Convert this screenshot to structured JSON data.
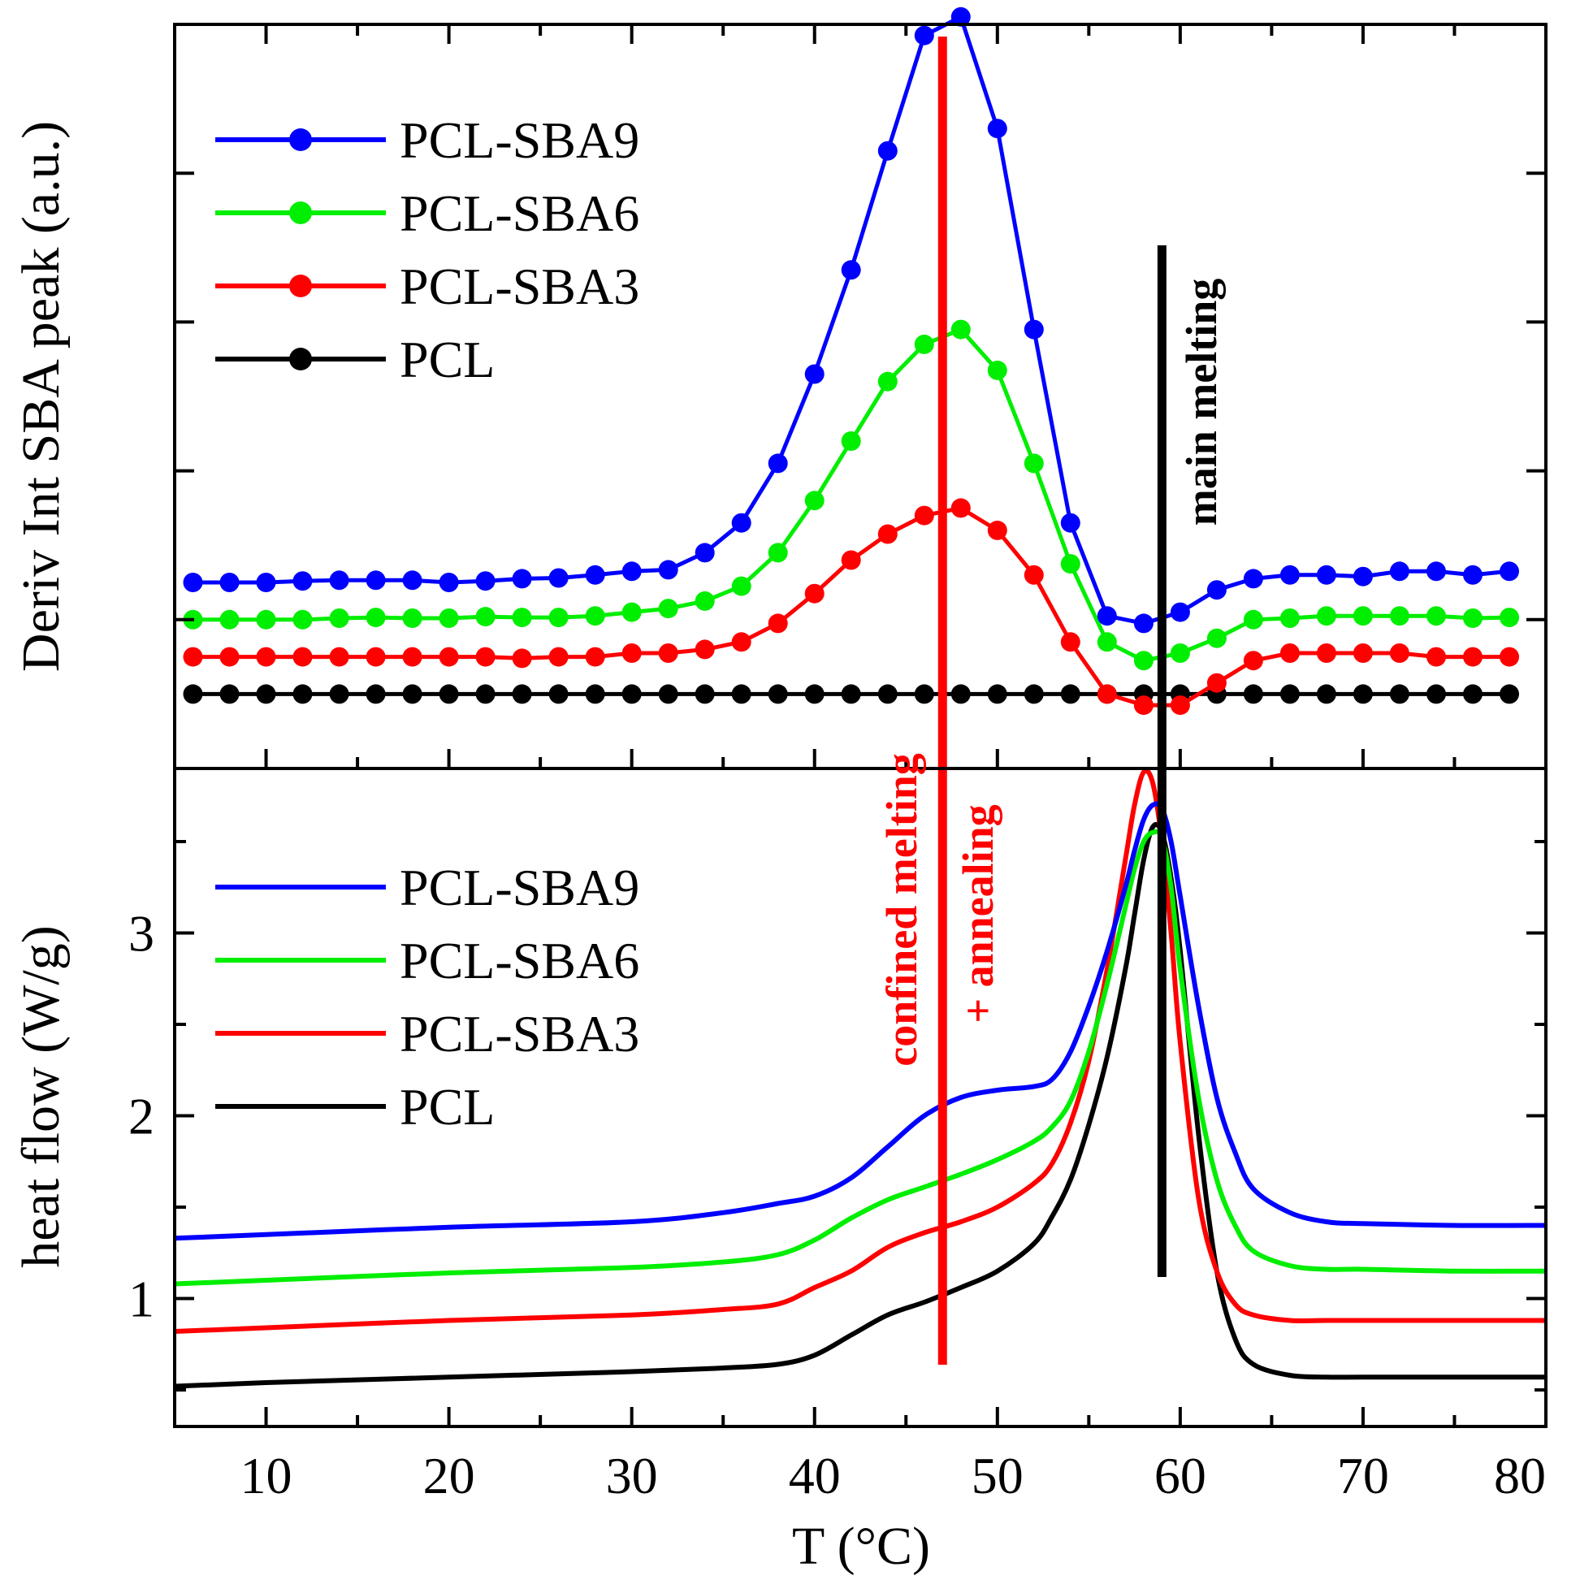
{
  "chart_data": [
    {
      "type": "line",
      "panel": "top",
      "ylabel": "Deriv Int SBA peak (a.u.)",
      "xlabel": "",
      "xlim": [
        5,
        80
      ],
      "ylim": [
        0,
        10
      ],
      "y_tick_labels_shown": false,
      "legend_position": "top-left",
      "markers": true,
      "x": [
        6,
        8,
        10,
        12,
        14,
        16,
        18,
        20,
        22,
        24,
        26,
        28,
        30,
        32,
        34,
        36,
        38,
        40,
        42,
        44,
        46,
        48,
        50,
        52,
        54,
        56,
        58,
        60,
        62,
        64,
        66,
        68,
        70,
        72,
        74,
        76,
        78
      ],
      "series": [
        {
          "name": "PCL-SBA9",
          "color": "#0000ff",
          "values": [
            2.5,
            2.5,
            2.5,
            2.52,
            2.53,
            2.53,
            2.53,
            2.5,
            2.52,
            2.55,
            2.56,
            2.6,
            2.65,
            2.67,
            2.9,
            3.3,
            4.1,
            5.3,
            6.7,
            8.3,
            9.85,
            10.1,
            8.6,
            5.9,
            3.3,
            2.05,
            1.95,
            2.1,
            2.4,
            2.55,
            2.6,
            2.6,
            2.58,
            2.65,
            2.65,
            2.6,
            2.65
          ]
        },
        {
          "name": "PCL-SBA6",
          "color": "#00ee00",
          "values": [
            2.0,
            2.0,
            2.0,
            2.0,
            2.02,
            2.03,
            2.02,
            2.02,
            2.04,
            2.03,
            2.03,
            2.05,
            2.1,
            2.15,
            2.25,
            2.45,
            2.9,
            3.6,
            4.4,
            5.2,
            5.7,
            5.9,
            5.35,
            4.1,
            2.75,
            1.7,
            1.45,
            1.55,
            1.75,
            2.0,
            2.02,
            2.05,
            2.05,
            2.05,
            2.05,
            2.02,
            2.03
          ]
        },
        {
          "name": "PCL-SBA3",
          "color": "#ff0000",
          "values": [
            1.5,
            1.5,
            1.5,
            1.5,
            1.5,
            1.5,
            1.5,
            1.5,
            1.5,
            1.48,
            1.5,
            1.5,
            1.55,
            1.55,
            1.6,
            1.7,
            1.95,
            2.35,
            2.8,
            3.15,
            3.4,
            3.5,
            3.2,
            2.6,
            1.7,
            1.0,
            0.85,
            0.85,
            1.15,
            1.45,
            1.55,
            1.55,
            1.55,
            1.55,
            1.5,
            1.5,
            1.5
          ]
        },
        {
          "name": "PCL",
          "color": "#000000",
          "values": [
            1.0,
            1.0,
            1.0,
            1.0,
            1.0,
            1.0,
            1.0,
            1.0,
            1.0,
            1.0,
            1.0,
            1.0,
            1.0,
            1.0,
            1.0,
            1.0,
            1.0,
            1.0,
            1.0,
            1.0,
            1.0,
            1.0,
            1.0,
            1.0,
            1.0,
            1.0,
            1.0,
            1.0,
            1.0,
            1.0,
            1.0,
            1.0,
            1.0,
            1.0,
            1.0,
            1.0,
            1.0
          ]
        }
      ]
    },
    {
      "type": "line",
      "panel": "bottom",
      "ylabel": "heat flow (W/g)",
      "xlabel": "T (°C)",
      "xlim": [
        5,
        80
      ],
      "ylim": [
        0.3,
        3.9
      ],
      "y_ticks": [
        1,
        2,
        3
      ],
      "x_ticks": [
        10,
        20,
        30,
        40,
        50,
        60,
        70,
        80
      ],
      "legend_position": "center-left",
      "markers": false,
      "x": [
        5,
        10,
        20,
        30,
        35,
        38,
        40,
        42,
        44,
        46,
        48,
        50,
        52,
        53,
        54,
        55,
        56,
        57,
        57.5,
        58,
        58.5,
        59,
        59.5,
        60,
        61,
        62,
        63,
        64,
        66,
        68,
        70,
        75,
        80
      ],
      "series": [
        {
          "name": "PCL-SBA9",
          "color": "#0000ff",
          "values": [
            1.33,
            1.35,
            1.39,
            1.42,
            1.47,
            1.52,
            1.56,
            1.66,
            1.83,
            2.0,
            2.1,
            2.14,
            2.16,
            2.2,
            2.35,
            2.6,
            2.9,
            3.25,
            3.45,
            3.62,
            3.7,
            3.68,
            3.5,
            3.2,
            2.6,
            2.1,
            1.8,
            1.6,
            1.47,
            1.42,
            1.41,
            1.4,
            1.4
          ]
        },
        {
          "name": "PCL-SBA6",
          "color": "#00ee00",
          "values": [
            1.08,
            1.1,
            1.14,
            1.17,
            1.2,
            1.24,
            1.32,
            1.44,
            1.54,
            1.61,
            1.68,
            1.76,
            1.86,
            1.94,
            2.08,
            2.35,
            2.72,
            3.14,
            3.35,
            3.5,
            3.55,
            3.52,
            3.25,
            2.8,
            2.1,
            1.65,
            1.4,
            1.26,
            1.18,
            1.16,
            1.16,
            1.15,
            1.15
          ]
        },
        {
          "name": "PCL-SBA3",
          "color": "#ff0000",
          "values": [
            0.82,
            0.84,
            0.88,
            0.91,
            0.94,
            0.97,
            1.06,
            1.15,
            1.28,
            1.36,
            1.42,
            1.5,
            1.63,
            1.74,
            1.96,
            2.3,
            2.8,
            3.4,
            3.7,
            3.88,
            3.82,
            3.5,
            3.0,
            2.4,
            1.55,
            1.15,
            0.97,
            0.91,
            0.88,
            0.88,
            0.88,
            0.88,
            0.88
          ]
        },
        {
          "name": "PCL",
          "color": "#000000",
          "values": [
            0.52,
            0.54,
            0.57,
            0.6,
            0.62,
            0.64,
            0.69,
            0.8,
            0.91,
            0.98,
            1.06,
            1.15,
            1.3,
            1.45,
            1.65,
            1.95,
            2.32,
            2.8,
            3.1,
            3.4,
            3.58,
            3.55,
            3.3,
            2.9,
            1.9,
            1.15,
            0.78,
            0.64,
            0.58,
            0.57,
            0.57,
            0.57,
            0.57
          ]
        }
      ]
    }
  ],
  "annotations": {
    "confined": {
      "line1": "confined melting",
      "line2": "+ annealing",
      "color": "#ff0000",
      "x": 47
    },
    "main": {
      "text": "main melting",
      "color": "#000000",
      "x": 59
    }
  }
}
